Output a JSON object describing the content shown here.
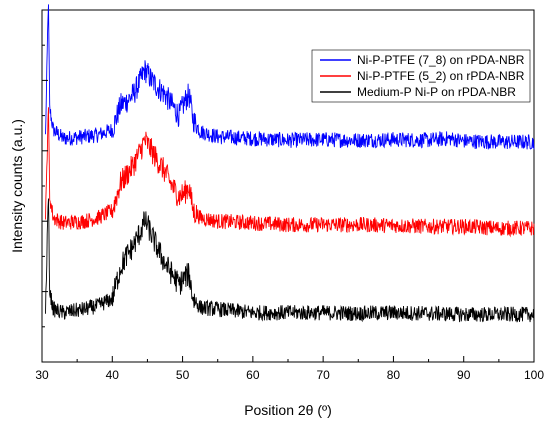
{
  "chart_data": {
    "type": "line",
    "title": "",
    "xlabel": "Position 2θ (º)",
    "ylabel": "Intensity counts (a.u.)",
    "xlim": [
      30,
      100
    ],
    "xticks": [
      "30",
      "40",
      "50",
      "60",
      "70",
      "80",
      "90",
      "100"
    ],
    "y_tick_labels": "none",
    "grid": false,
    "legend_position": "top-right",
    "series": [
      {
        "name": "Ni-P-PTFE (7_8) on rPDA-NBR",
        "color": "#0000ff",
        "baseline": 0.63,
        "x": [
          30.5,
          30.9,
          31.1,
          31.6,
          33,
          36,
          38,
          40,
          41.2,
          42,
          43,
          44,
          44.6,
          45,
          45.6,
          46.5,
          47.5,
          48.5,
          49.5,
          50.3,
          50.9,
          51.5,
          52.5,
          55,
          60,
          65,
          70,
          75,
          80,
          85,
          88,
          90,
          95,
          100
        ],
        "y": [
          0.64,
          1.03,
          0.72,
          0.66,
          0.635,
          0.64,
          0.645,
          0.66,
          0.73,
          0.74,
          0.76,
          0.8,
          0.83,
          0.82,
          0.8,
          0.78,
          0.76,
          0.73,
          0.7,
          0.74,
          0.76,
          0.69,
          0.655,
          0.64,
          0.635,
          0.63,
          0.632,
          0.63,
          0.632,
          0.63,
          0.635,
          0.628,
          0.625,
          0.625
        ]
      },
      {
        "name": "Ni-P-PTFE (5_2) on rPDA-NBR",
        "color": "#ff0000",
        "baseline": 0.39,
        "x": [
          30.5,
          30.9,
          31.1,
          31.6,
          33,
          36,
          38,
          40,
          41.2,
          42,
          43,
          44,
          44.6,
          45,
          45.6,
          46.5,
          47.5,
          48.5,
          49.5,
          50.3,
          50.9,
          51.5,
          52.5,
          55,
          60,
          65,
          70,
          75,
          80,
          85,
          90,
          95,
          100
        ],
        "y": [
          0.4,
          0.73,
          0.47,
          0.41,
          0.395,
          0.4,
          0.41,
          0.43,
          0.51,
          0.53,
          0.56,
          0.6,
          0.63,
          0.62,
          0.6,
          0.57,
          0.54,
          0.5,
          0.47,
          0.48,
          0.5,
          0.43,
          0.41,
          0.4,
          0.395,
          0.39,
          0.39,
          0.39,
          0.388,
          0.385,
          0.385,
          0.38,
          0.38
        ]
      },
      {
        "name": "Medium-P Ni-P on rPDA-NBR",
        "color": "#000000",
        "baseline": 0.13,
        "x": [
          30.5,
          30.9,
          31.1,
          31.6,
          33,
          36,
          38,
          40,
          41.2,
          42,
          43,
          44,
          44.6,
          45,
          45.6,
          46.5,
          47.5,
          48.5,
          49.5,
          50.3,
          50.9,
          51.5,
          52.5,
          55,
          60,
          65,
          70,
          75,
          80,
          85,
          90,
          95,
          100
        ],
        "y": [
          0.14,
          0.48,
          0.2,
          0.15,
          0.14,
          0.15,
          0.16,
          0.18,
          0.27,
          0.3,
          0.33,
          0.37,
          0.4,
          0.39,
          0.36,
          0.32,
          0.28,
          0.25,
          0.22,
          0.24,
          0.25,
          0.18,
          0.155,
          0.15,
          0.14,
          0.14,
          0.14,
          0.138,
          0.14,
          0.138,
          0.135,
          0.135,
          0.135
        ]
      }
    ]
  }
}
